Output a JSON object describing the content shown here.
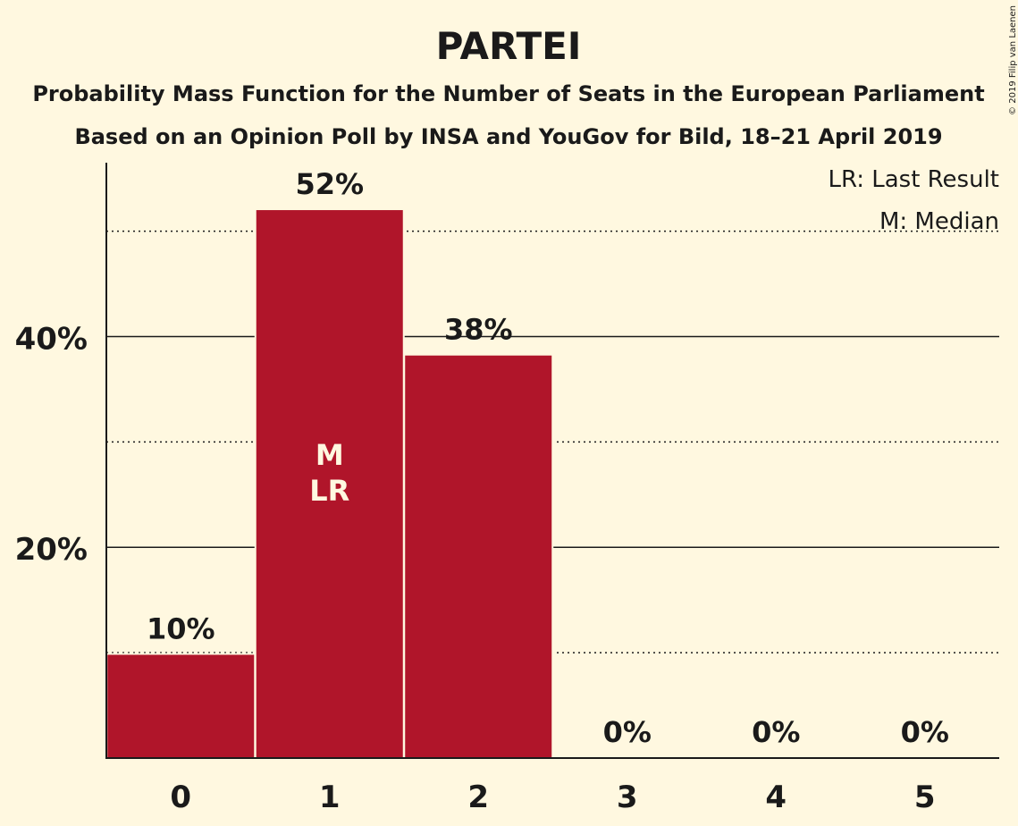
{
  "chart_data": {
    "type": "bar",
    "title": "PARTEI",
    "subtitle": "Probability Mass Function for the Number of Seats in the European Parliament",
    "subtitle2": "Based on an Opinion Poll by INSA and YouGov for Bild, 18–21 April 2019",
    "categories": [
      "0",
      "1",
      "2",
      "3",
      "4",
      "5"
    ],
    "values": [
      9.8,
      52,
      38.2,
      0,
      0,
      0
    ],
    "value_labels": [
      "10%",
      "52%",
      "38%",
      "0%",
      "0%",
      "0%"
    ],
    "ylim": [
      0,
      56.5
    ],
    "yticks": [
      20,
      40
    ],
    "ytick_labels": [
      "20%",
      "40%"
    ],
    "minor_gridlines": [
      10,
      30,
      50
    ],
    "bar_annotations": [
      {
        "category": "1",
        "lines": [
          "M",
          "LR"
        ]
      }
    ],
    "legend": {
      "placement": "top-right",
      "entries": [
        "LR: Last Result",
        "M: Median"
      ]
    },
    "bar_color": "#B0152A",
    "background_color": "#FFF8E0",
    "copyright": "© 2019 Filip van Laenen"
  }
}
